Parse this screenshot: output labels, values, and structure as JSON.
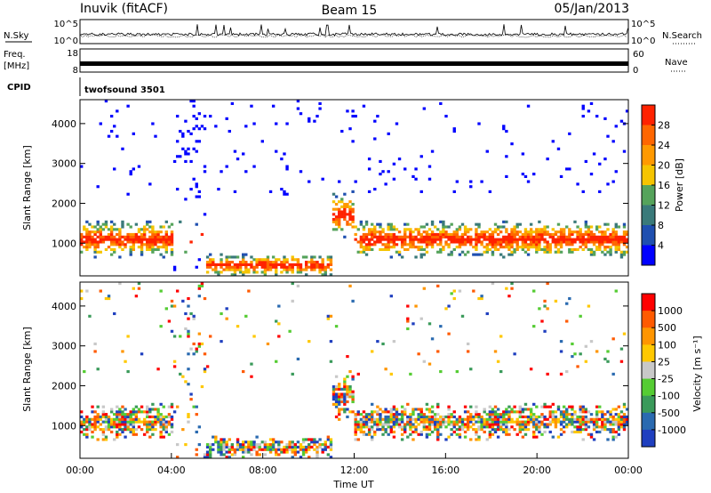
{
  "header": {
    "station": "Inuvik (fitACF)",
    "beam": "Beam 15",
    "date": "05/Jan/2013"
  },
  "left_labels": {
    "nsky": "N.Sky",
    "freq": "Freq.",
    "freq_unit": "[MHz]",
    "cpid": "CPID"
  },
  "right_labels": {
    "nsearch": "N.Search",
    "nave": "Nave"
  },
  "cpid_text": "twofsound 3501",
  "colors": {
    "power_scale": [
      "#0000ff",
      "#1f4fb0",
      "#3a7a7a",
      "#55a35b",
      "#f5c400",
      "#ff9900",
      "#ff6600",
      "#ff2200"
    ],
    "velocity_scale": [
      "#ff0000",
      "#ff5a00",
      "#ff9500",
      "#ffc800",
      "#c8c8c8",
      "#55cc33",
      "#3a9a5a",
      "#2a6ab0",
      "#1f3fbf"
    ],
    "ground_scatter": "#bfbfbf"
  },
  "chart_data": [
    {
      "type": "line",
      "name": "N.Sky / N.Search noise",
      "x_ticks": [],
      "y_left_ticks": [
        "10^5",
        "10^0"
      ],
      "y_right_ticks": [
        "10^5",
        "10^0"
      ]
    },
    {
      "type": "line",
      "name": "Frequency / Nave",
      "y_left_ticks": [
        "18",
        "8"
      ],
      "y_right_ticks": [
        "60",
        "0"
      ],
      "frequency_mhz": 10.3
    },
    {
      "type": "heatmap",
      "quantity": "Power",
      "ylabel": "Slant Range [km]",
      "colorbar_label": "Power [dB]",
      "y_ticks": [
        1000,
        2000,
        3000,
        4000
      ],
      "ylim": [
        180,
        4600
      ],
      "xlim_hours": [
        0,
        24
      ],
      "colorbar_ticks": [
        4,
        8,
        12,
        16,
        20,
        24,
        28
      ],
      "colorbar_range": [
        0,
        32
      ]
    },
    {
      "type": "heatmap",
      "quantity": "Velocity",
      "ylabel": "Slant Range [km]",
      "xlabel": "Time UT",
      "colorbar_label": "Velocity [m s⁻¹]",
      "y_ticks": [
        1000,
        2000,
        3000,
        4000
      ],
      "ylim": [
        180,
        4600
      ],
      "x_tick_labels": [
        "00:00",
        "04:00",
        "08:00",
        "12:00",
        "16:00",
        "20:00",
        "00:00"
      ],
      "colorbar_ticks": [
        "1000",
        "500",
        "100",
        "25",
        "-25",
        "-100",
        "-500",
        "-1000"
      ]
    }
  ]
}
